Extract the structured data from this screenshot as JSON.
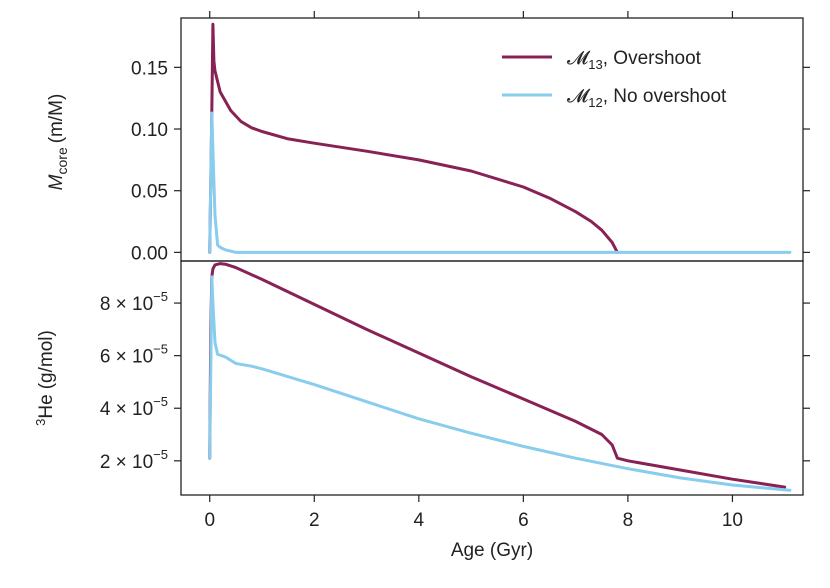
{
  "chart_data": [
    {
      "type": "line",
      "panel": "top",
      "ylabel": "M_core (m/M)",
      "ylabel_parts": {
        "symbol": "M",
        "subscript": "core",
        "units": "(m/M)"
      },
      "ylim": [
        -0.007,
        0.19
      ],
      "xlim": [
        -0.55,
        11.35
      ],
      "yticks": [
        0.0,
        0.05,
        0.1,
        0.15
      ],
      "ytick_labels": [
        "0.00",
        "0.05",
        "0.10",
        "0.15"
      ],
      "legend_position": "top-right",
      "series": [
        {
          "name": "M13, Overshoot",
          "legend_symbol": "𝓜",
          "legend_sub": "13",
          "legend_suffix": ", Overshoot",
          "color": "#882255",
          "x": [
            0.0,
            0.04,
            0.06,
            0.08,
            0.1,
            0.2,
            0.4,
            0.6,
            0.8,
            1.0,
            1.5,
            2.0,
            3.0,
            4.0,
            5.0,
            6.0,
            6.5,
            7.0,
            7.3,
            7.5,
            7.7,
            7.8
          ],
          "y": [
            0.0,
            0.113,
            0.185,
            0.155,
            0.147,
            0.13,
            0.115,
            0.106,
            0.101,
            0.098,
            0.092,
            0.0885,
            0.082,
            0.075,
            0.066,
            0.053,
            0.044,
            0.033,
            0.025,
            0.018,
            0.008,
            0.0
          ]
        },
        {
          "name": "M12, No overshoot",
          "legend_symbol": "𝓜",
          "legend_sub": "12",
          "legend_suffix": ", No overshoot",
          "color": "#88CCEE",
          "x": [
            0.0,
            0.04,
            0.07,
            0.1,
            0.15,
            0.2,
            0.3,
            0.4,
            0.5,
            1.0,
            11.1
          ],
          "y": [
            0.0,
            0.113,
            0.07,
            0.03,
            0.006,
            0.004,
            0.002,
            0.001,
            0.0,
            0.0,
            0.0
          ]
        }
      ]
    },
    {
      "type": "line",
      "panel": "bottom",
      "ylabel": "3He (g/mol)",
      "ylabel_parts": {
        "superscript": "3",
        "symbol": "He",
        "units": "(g/mol)"
      },
      "xlabel": "Age (Gyr)",
      "ylim": [
        7e-06,
        9.6e-05
      ],
      "xlim": [
        -0.55,
        11.35
      ],
      "xticks": [
        0,
        2,
        4,
        6,
        8,
        10
      ],
      "xtick_labels": [
        "0",
        "2",
        "4",
        "6",
        "8",
        "10"
      ],
      "yticks": [
        2e-05,
        4e-05,
        6e-05,
        8e-05
      ],
      "ytick_labels": [
        {
          "mantissa": "2",
          "times": "×",
          "base": "10",
          "exponent": "−5"
        },
        {
          "mantissa": "4",
          "times": "×",
          "base": "10",
          "exponent": "−5"
        },
        {
          "mantissa": "6",
          "times": "×",
          "base": "10",
          "exponent": "−5"
        },
        {
          "mantissa": "8",
          "times": "×",
          "base": "10",
          "exponent": "−5"
        }
      ],
      "series": [
        {
          "name": "M13, Overshoot",
          "color": "#882255",
          "x": [
            0.0,
            0.02,
            0.04,
            0.06,
            0.1,
            0.2,
            0.3,
            0.5,
            1.0,
            2.0,
            3.0,
            4.0,
            5.0,
            6.0,
            7.0,
            7.5,
            7.7,
            7.8,
            8.0,
            9.0,
            10.0,
            11.0
          ],
          "y": [
            2.1e-05,
            7e-05,
            9e-05,
            9.3e-05,
            9.45e-05,
            9.5e-05,
            9.48e-05,
            9.35e-05,
            8.9e-05,
            7.95e-05,
            7e-05,
            6.1e-05,
            5.2e-05,
            4.35e-05,
            3.5e-05,
            3e-05,
            2.6e-05,
            2.1e-05,
            2e-05,
            1.65e-05,
            1.3e-05,
            1e-05
          ]
        },
        {
          "name": "M12, No overshoot",
          "color": "#88CCEE",
          "x": [
            0.0,
            0.02,
            0.04,
            0.06,
            0.1,
            0.15,
            0.3,
            0.5,
            0.8,
            1.0,
            2.0,
            3.0,
            4.0,
            5.0,
            6.0,
            7.0,
            8.0,
            9.0,
            10.0,
            11.1
          ],
          "y": [
            2.1e-05,
            5.5e-05,
            9e-05,
            8e-05,
            6.5e-05,
            6.05e-05,
            5.95e-05,
            5.7e-05,
            5.6e-05,
            5.5e-05,
            4.9e-05,
            4.25e-05,
            3.6e-05,
            3.05e-05,
            2.55e-05,
            2.1e-05,
            1.7e-05,
            1.35e-05,
            1.08e-05,
            8.8e-06
          ]
        }
      ]
    }
  ]
}
